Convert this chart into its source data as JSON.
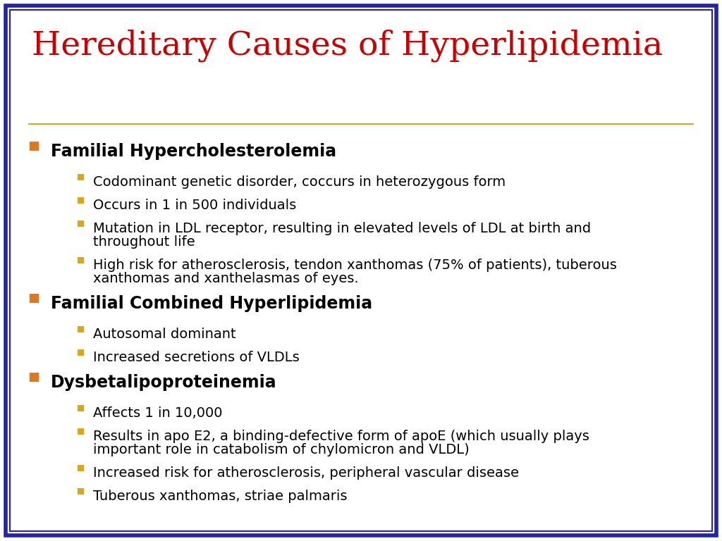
{
  "title": "Hereditary Causes of Hyperlipidemia",
  "title_color": "#CC0000",
  "title_fontsize": 34,
  "title_font": "serif",
  "background_color": "#FFFFFF",
  "border_outer_color": "#2222AA",
  "border_inner_color": "#2222AA",
  "separator_color": "#DAA520",
  "main_bullet_color": "#E07820",
  "sub_bullet_color": "#DAA520",
  "main_text_color": "#000000",
  "main_fontsize": 17,
  "sub_fontsize": 14,
  "items": [
    {
      "level": 1,
      "text": "Familial Hypercholesterolemia",
      "lines": 1
    },
    {
      "level": 2,
      "text": "Codominant genetic disorder, coccurs in heterozygous form",
      "lines": 1
    },
    {
      "level": 2,
      "text": "Occurs in 1 in 500 individuals",
      "lines": 1
    },
    {
      "level": 2,
      "text": "Mutation in LDL receptor, resulting in elevated levels of LDL at birth and\nthroughout life",
      "lines": 2
    },
    {
      "level": 2,
      "text": "High risk for atherosclerosis, tendon xanthomas (75% of patients), tuberous\nxanthomas and xanthelasmas of eyes.",
      "lines": 2
    },
    {
      "level": 1,
      "text": "Familial Combined Hyperlipidemia",
      "lines": 1
    },
    {
      "level": 2,
      "text": "Autosomal dominant",
      "lines": 1
    },
    {
      "level": 2,
      "text": "Increased secretions of VLDLs",
      "lines": 1
    },
    {
      "level": 1,
      "text": "Dysbetalipoproteinemia",
      "lines": 1
    },
    {
      "level": 2,
      "text": "Affects 1 in 10,000",
      "lines": 1
    },
    {
      "level": 2,
      "text": "Results in apo E2, a binding-defective form of apoE (which usually plays\nimportant role in catabolism of chylomicron and VLDL)",
      "lines": 2
    },
    {
      "level": 2,
      "text": "Increased risk for atherosclerosis, peripheral vascular disease",
      "lines": 1
    },
    {
      "level": 2,
      "text": "Tuberous xanthomas, striae palmaris",
      "lines": 1
    }
  ]
}
